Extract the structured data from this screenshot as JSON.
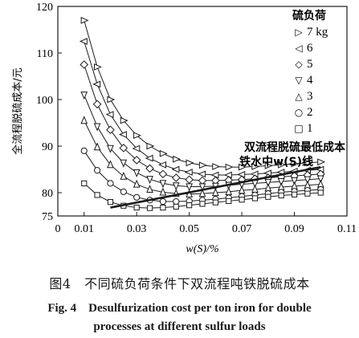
{
  "chart_data": {
    "type": "line",
    "xlabel": "w(S)/%",
    "ylabel": "全流程脱硫成本/元",
    "xlim": [
      0,
      0.11
    ],
    "ylim": [
      75,
      120
    ],
    "xticks": [
      "0",
      "0.01",
      "0.03",
      "0.05",
      "0.07",
      "0.09",
      "0.11"
    ],
    "yticks": [
      "75",
      "80",
      "90",
      "100",
      "110",
      "120"
    ],
    "grid": false,
    "legend": {
      "title": "硫负荷",
      "placement": "top-right",
      "entries": [
        {
          "symbol": "▷",
          "label": "7 kg"
        },
        {
          "symbol": "◁",
          "label": "6"
        },
        {
          "symbol": "◇",
          "label": "5"
        },
        {
          "symbol": "▽",
          "label": "4"
        },
        {
          "symbol": "△",
          "label": "3"
        },
        {
          "symbol": "○",
          "label": "2"
        },
        {
          "symbol": "□",
          "label": "1"
        }
      ]
    },
    "annotation": {
      "line1": "双流程脱硫最低成本",
      "line2": "铁水中w(S)线"
    },
    "x": [
      0.01,
      0.015,
      0.02,
      0.025,
      0.03,
      0.035,
      0.04,
      0.045,
      0.05,
      0.055,
      0.06,
      0.065,
      0.07,
      0.075,
      0.08,
      0.085,
      0.09,
      0.095,
      0.1
    ],
    "series": [
      {
        "name": "7 kg",
        "marker": "triangle-right",
        "values": [
          117.0,
          107.0,
          100.0,
          95.5,
          92.3,
          90.0,
          88.4,
          87.2,
          86.4,
          85.9,
          85.6,
          85.5,
          85.5,
          85.6,
          85.8,
          86.0,
          86.2,
          86.4,
          86.6
        ]
      },
      {
        "name": "6",
        "marker": "triangle-left",
        "values": [
          112.5,
          103.3,
          96.8,
          92.5,
          89.5,
          87.4,
          86.0,
          85.0,
          84.4,
          84.0,
          83.8,
          83.8,
          83.9,
          84.0,
          84.2,
          84.4,
          84.6,
          84.8,
          85.0
        ]
      },
      {
        "name": "5",
        "marker": "diamond",
        "values": [
          107.5,
          99.0,
          93.5,
          89.6,
          87.0,
          85.2,
          84.0,
          83.2,
          82.8,
          82.6,
          82.6,
          82.7,
          82.8,
          83.0,
          83.2,
          83.4,
          83.6,
          83.8,
          84.0
        ]
      },
      {
        "name": "4",
        "marker": "triangle-down",
        "values": [
          101.0,
          94.2,
          89.5,
          86.4,
          84.3,
          82.9,
          82.0,
          81.5,
          81.3,
          81.3,
          81.4,
          81.6,
          81.8,
          82.0,
          82.2,
          82.4,
          82.6,
          82.8,
          83.0
        ]
      },
      {
        "name": "3",
        "marker": "triangle-up",
        "values": [
          95.5,
          89.8,
          86.0,
          83.5,
          81.8,
          80.7,
          80.1,
          79.8,
          79.7,
          79.8,
          80.0,
          80.2,
          80.5,
          80.7,
          81.0,
          81.2,
          81.4,
          81.6,
          81.8
        ]
      },
      {
        "name": "2",
        "marker": "circle",
        "values": [
          89.0,
          84.8,
          82.0,
          80.2,
          79.0,
          78.4,
          78.1,
          78.1,
          78.2,
          78.4,
          78.6,
          78.9,
          79.2,
          79.5,
          79.8,
          80.1,
          80.3,
          80.5,
          80.7
        ]
      },
      {
        "name": "1",
        "marker": "square",
        "values": [
          82.0,
          79.5,
          78.0,
          77.2,
          76.8,
          76.7,
          76.8,
          77.0,
          77.3,
          77.6,
          77.9,
          78.2,
          78.5,
          78.8,
          79.1,
          79.4,
          79.6,
          79.8,
          80.0
        ]
      }
    ],
    "min_cost_line": {
      "x": [
        0.02,
        0.1
      ],
      "values": [
        76.8,
        85.5
      ]
    }
  },
  "caption": {
    "cn": "图4　不同硫负荷条件下双流程吨铁脱硫成本",
    "en_line1": "Fig. 4　Desulfurization cost per ton iron for double",
    "en_line2": "processes at different sulfur loads"
  }
}
